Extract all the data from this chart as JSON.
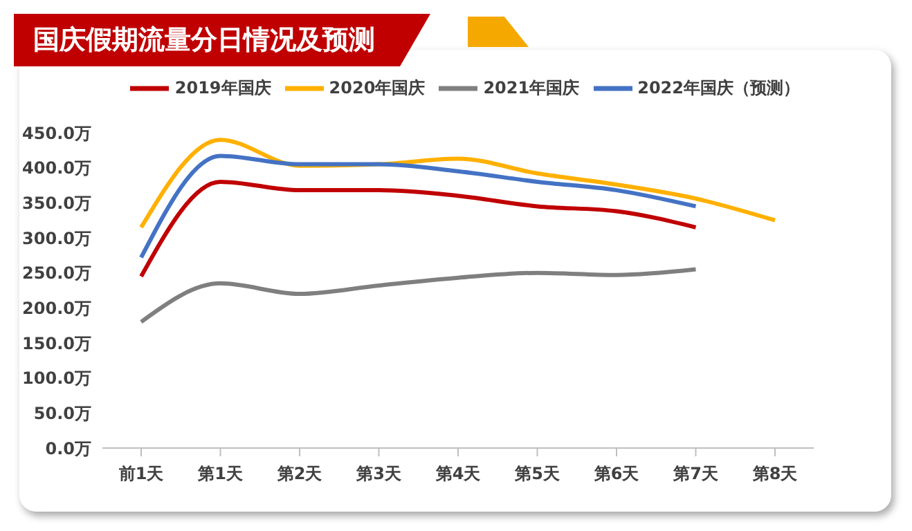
{
  "chart_data": {
    "type": "line",
    "title": "国庆假期流量分日情况及预测",
    "categories": [
      "前1天",
      "第1天",
      "第2天",
      "第3天",
      "第4天",
      "第5天",
      "第6天",
      "第7天",
      "第8天"
    ],
    "series": [
      {
        "name": "2019年国庆",
        "color": "#c00000",
        "values": [
          245,
          380,
          368,
          368,
          360,
          345,
          338,
          315,
          null
        ]
      },
      {
        "name": "2020年国庆",
        "color": "#ffb000",
        "values": [
          315,
          440,
          403,
          405,
          413,
          392,
          376,
          356,
          325
        ]
      },
      {
        "name": "2021年国庆",
        "color": "#7f7f7f",
        "values": [
          180,
          235,
          220,
          232,
          243,
          250,
          247,
          255,
          null
        ]
      },
      {
        "name": "2022年国庆（预测）",
        "color": "#4472c4",
        "values": [
          272,
          417,
          405,
          405,
          395,
          380,
          368,
          345,
          null
        ]
      }
    ],
    "ylim": [
      0,
      450
    ],
    "yticks": [
      {
        "value": 0,
        "label": "0.0万"
      },
      {
        "value": 50,
        "label": "50.0万"
      },
      {
        "value": 100,
        "label": "100.0万"
      },
      {
        "value": 150,
        "label": "150.0万"
      },
      {
        "value": 200,
        "label": "200.0万"
      },
      {
        "value": 250,
        "label": "250.0万"
      },
      {
        "value": 300,
        "label": "300.0万"
      },
      {
        "value": 350,
        "label": "350.0万"
      },
      {
        "value": 400,
        "label": "400.0万"
      },
      {
        "value": 450,
        "label": "450.0万"
      }
    ],
    "grid": false,
    "legend": "top",
    "marker": "none"
  }
}
